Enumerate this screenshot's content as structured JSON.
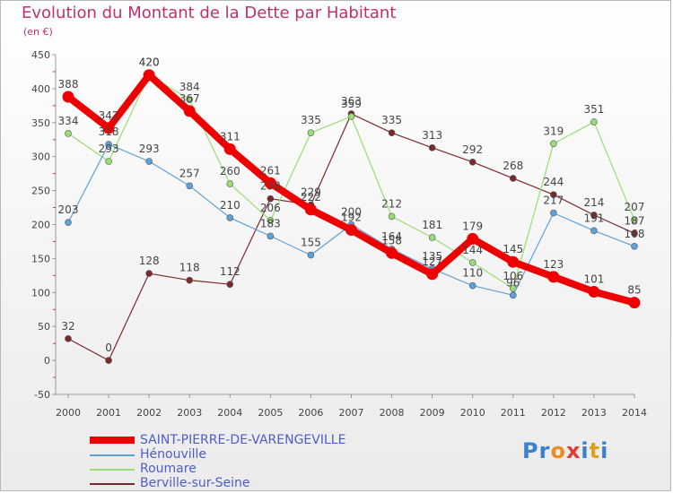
{
  "title": "Evolution du Montant de la Dette par Habitant",
  "subtitle": "(en €)",
  "logo": {
    "parts": [
      "Pr",
      "o",
      "x",
      "i",
      "t",
      "i"
    ],
    "colors": [
      "#3a7fd0",
      "#ef8a1f",
      "#e03c31",
      "#3a7fd0",
      "#e0a020",
      "#3a7fd0"
    ]
  },
  "chart_data": {
    "type": "line",
    "title": "Evolution du Montant de la Dette par Habitant",
    "ylabel": "(en €)",
    "xlabel": "",
    "x": [
      "2000",
      "2001",
      "2002",
      "2003",
      "2004",
      "2005",
      "2006",
      "2007",
      "2008",
      "2009",
      "2010",
      "2011",
      "2012",
      "2013",
      "2014"
    ],
    "ylim": [
      -50,
      450
    ],
    "yticks": [
      -50,
      0,
      50,
      100,
      150,
      200,
      250,
      300,
      350,
      400,
      450
    ],
    "grid": false,
    "legend": "bottom-left",
    "series": [
      {
        "name": "SAINT-PIERRE-DE-VARENGEVILLE",
        "color": "#ee0000",
        "width": 8,
        "values": [
          388,
          342,
          420,
          367,
          311,
          261,
          222,
          192,
          158,
          127,
          179,
          145,
          123,
          101,
          85
        ]
      },
      {
        "name": "Hénouville",
        "color": "#5fa0d8",
        "width": 1.2,
        "values": [
          203,
          318,
          293,
          257,
          210,
          183,
          155,
          200,
          164,
          135,
          110,
          96,
          217,
          191,
          168
        ]
      },
      {
        "name": "Roumare",
        "color": "#99dd77",
        "width": 1.2,
        "values": [
          334,
          293,
          420,
          384,
          260,
          206,
          335,
          359,
          212,
          181,
          144,
          106,
          319,
          351,
          207
        ]
      },
      {
        "name": "Berville-sur-Seine",
        "color": "#7a2a2a",
        "width": 1.2,
        "values": [
          32,
          0,
          128,
          118,
          112,
          238,
          229,
          363,
          335,
          313,
          292,
          268,
          244,
          214,
          187
        ]
      }
    ]
  }
}
